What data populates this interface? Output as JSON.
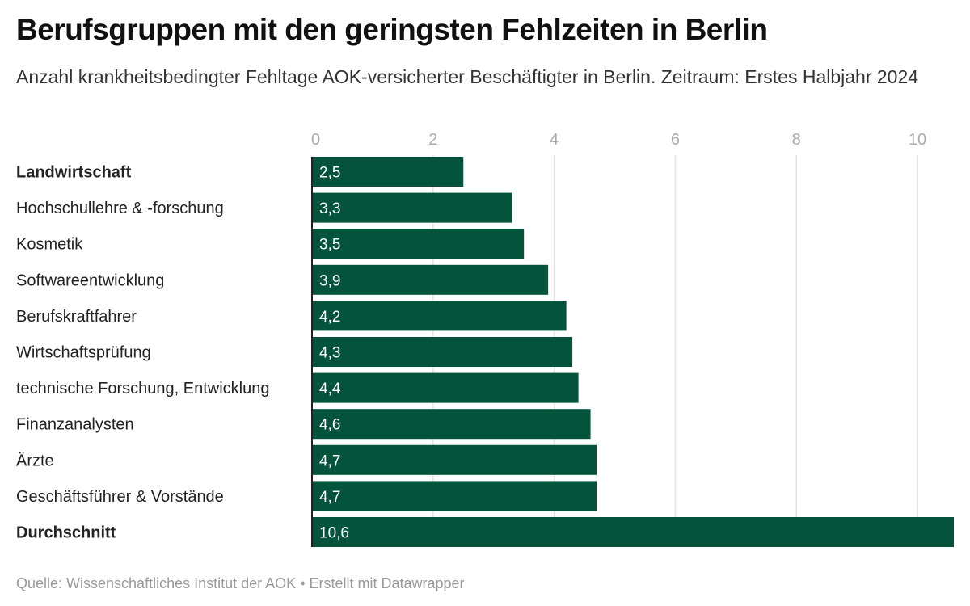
{
  "header": {
    "title": "Berufsgruppen mit den geringsten Fehlzeiten in Berlin",
    "subtitle": "Anzahl krankheitsbedingter Fehltage AOK-versicherter Beschäftigter in Berlin. Zeitraum: Erstes Halbjahr 2024"
  },
  "footer": {
    "text": "Quelle: Wissenschaftliches Institut der AOK • Erstellt mit Datawrapper"
  },
  "colors": {
    "bar": "#03543a",
    "grid": "#e2e2e2",
    "axis": "#222222"
  },
  "chart_data": {
    "type": "bar",
    "orientation": "horizontal",
    "title": "Berufsgruppen mit den geringsten Fehlzeiten in Berlin",
    "subtitle": "Anzahl krankheitsbedingter Fehltage AOK-versicherter Beschäftigter in Berlin. Zeitraum: Erstes Halbjahr 2024",
    "xlabel": "",
    "ylabel": "",
    "xlim": [
      0,
      10.6
    ],
    "ticks": [
      0,
      2,
      4,
      6,
      8,
      10
    ],
    "tick_labels": [
      "0",
      "2",
      "4",
      "6",
      "8",
      "10"
    ],
    "grid": true,
    "tick_position": "top",
    "categories": [
      "Landwirtschaft",
      "Hochschullehre & -forschung",
      "Kosmetik",
      "Softwareentwicklung",
      "Berufskraftfahrer",
      "Wirtschaftsprüfung",
      "technische Forschung, Entwicklung",
      "Finanzanalysten",
      "Ärzte",
      "Geschäftsführer & Vorstände",
      "Durchschnitt"
    ],
    "bold_categories": [
      "Landwirtschaft",
      "Durchschnitt"
    ],
    "values": [
      2.5,
      3.3,
      3.5,
      3.9,
      4.2,
      4.3,
      4.4,
      4.6,
      4.7,
      4.7,
      10.6
    ],
    "value_labels": [
      "2,5",
      "3,3",
      "3,5",
      "3,9",
      "4,2",
      "4,3",
      "4,4",
      "4,6",
      "4,7",
      "4,7",
      "10,6"
    ],
    "source": "Quelle: Wissenschaftliches Institut der AOK • Erstellt mit Datawrapper"
  }
}
